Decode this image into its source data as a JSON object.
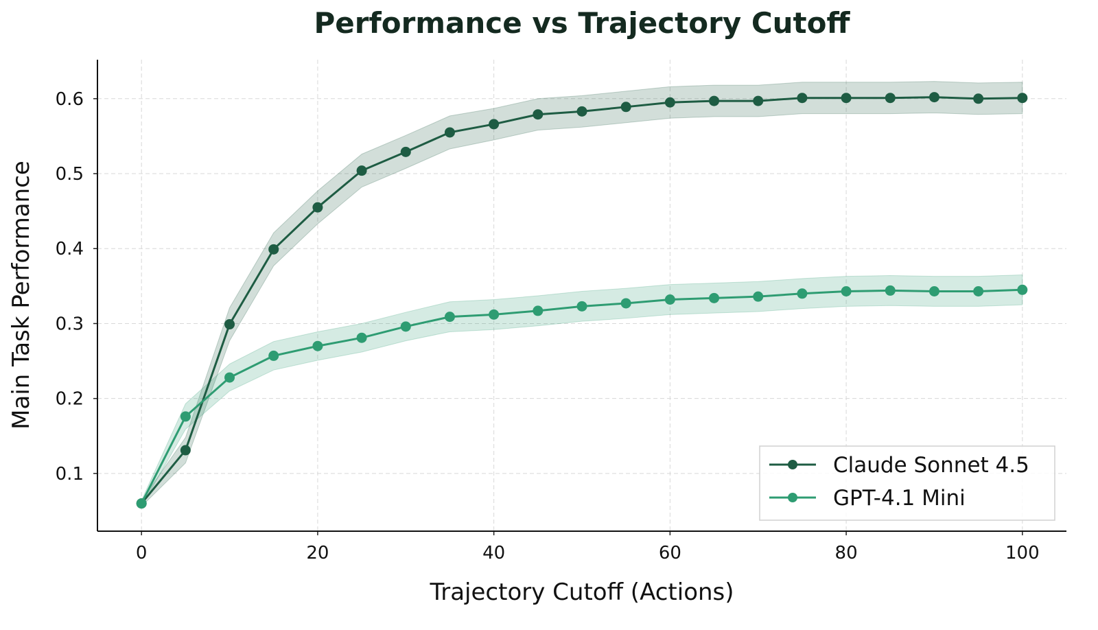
{
  "chart_data": {
    "type": "line",
    "title": "Performance vs Trajectory Cutoff",
    "xlabel": "Trajectory Cutoff (Actions)",
    "ylabel": "Main Task Performance",
    "xlim": [
      -5,
      105
    ],
    "ylim": [
      0.023,
      0.652
    ],
    "xticks": [
      0,
      20,
      40,
      60,
      80,
      100
    ],
    "yticks": [
      0.1,
      0.2,
      0.3,
      0.4,
      0.5,
      0.6
    ],
    "grid": true,
    "legend_position": "bottom-right",
    "x": [
      0,
      5,
      10,
      15,
      20,
      25,
      30,
      35,
      40,
      45,
      50,
      55,
      60,
      65,
      70,
      75,
      80,
      85,
      90,
      95,
      100
    ],
    "series": [
      {
        "name": "Claude Sonnet 4.5",
        "color": "#1e5c43",
        "values": [
          0.06,
          0.131,
          0.299,
          0.399,
          0.455,
          0.504,
          0.529,
          0.555,
          0.566,
          0.579,
          0.583,
          0.589,
          0.595,
          0.597,
          0.597,
          0.601,
          0.601,
          0.601,
          0.602,
          0.6,
          0.601
        ],
        "band_halfwidth": [
          0.004,
          0.017,
          0.022,
          0.022,
          0.022,
          0.022,
          0.022,
          0.022,
          0.021,
          0.021,
          0.021,
          0.021,
          0.021,
          0.021,
          0.021,
          0.021,
          0.021,
          0.021,
          0.021,
          0.021,
          0.021
        ]
      },
      {
        "name": "GPT-4.1 Mini",
        "color": "#2e9c72",
        "values": [
          0.06,
          0.176,
          0.228,
          0.257,
          0.27,
          0.281,
          0.296,
          0.309,
          0.312,
          0.317,
          0.323,
          0.327,
          0.332,
          0.334,
          0.336,
          0.34,
          0.343,
          0.344,
          0.343,
          0.343,
          0.345
        ],
        "band_halfwidth": [
          0.004,
          0.017,
          0.018,
          0.019,
          0.019,
          0.019,
          0.019,
          0.02,
          0.02,
          0.02,
          0.02,
          0.02,
          0.02,
          0.02,
          0.02,
          0.02,
          0.02,
          0.02,
          0.02,
          0.02,
          0.02
        ]
      }
    ]
  }
}
